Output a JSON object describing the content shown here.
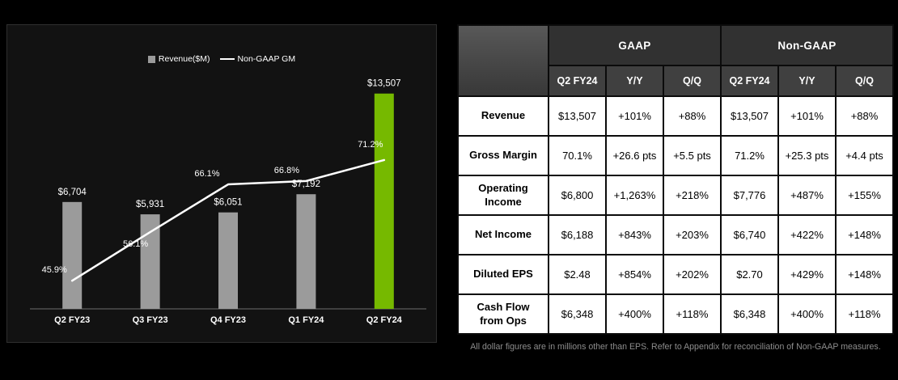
{
  "colors": {
    "nvidia_green": "#76b900",
    "bar_gray": "#9b9b9b",
    "gm_line_white": "#ffffff"
  },
  "chart_data": {
    "type": "bar",
    "subtype": "bar-with-line-overlay",
    "categories": [
      "Q2 FY23",
      "Q3 FY23",
      "Q4 FY23",
      "Q1 FY24",
      "Q2 FY24"
    ],
    "series": [
      {
        "name": "Revenue($M)",
        "type": "bar",
        "values": [
          6704,
          5931,
          6051,
          7192,
          13507
        ],
        "labels": [
          "$6,704",
          "$5,931",
          "$6,051",
          "$7,192",
          "$13,507"
        ],
        "bar_colors": [
          "#9b9b9b",
          "#9b9b9b",
          "#9b9b9b",
          "#9b9b9b",
          "#76b900"
        ]
      },
      {
        "name": "Non-GAAP GM",
        "type": "line",
        "values": [
          45.9,
          56.1,
          66.1,
          66.8,
          71.2
        ],
        "labels": [
          "45.9%",
          "56.1%",
          "66.1%",
          "66.8%",
          "71.2%"
        ],
        "color": "#ffffff"
      }
    ],
    "ylim_bar": [
      0,
      14000
    ],
    "ylim_line": [
      40,
      80
    ],
    "grid": false,
    "legend_position": "top-center"
  },
  "table": {
    "group_headers": [
      {
        "label": "GAAP",
        "span": 3
      },
      {
        "label": "Non-GAAP",
        "span": 3
      }
    ],
    "column_headers": [
      "Q2 FY24",
      "Y/Y",
      "Q/Q",
      "Q2 FY24",
      "Y/Y",
      "Q/Q"
    ],
    "rows": [
      {
        "label": "Revenue",
        "values": [
          "$13,507",
          "+101%",
          "+88%",
          "$13,507",
          "+101%",
          "+88%"
        ]
      },
      {
        "label": "Gross Margin",
        "values": [
          "70.1%",
          "+26.6 pts",
          "+5.5 pts",
          "71.2%",
          "+25.3 pts",
          "+4.4 pts"
        ]
      },
      {
        "label": "Operating Income",
        "values": [
          "$6,800",
          "+1,263%",
          "+218%",
          "$7,776",
          "+487%",
          "+155%"
        ]
      },
      {
        "label": "Net Income",
        "values": [
          "$6,188",
          "+843%",
          "+203%",
          "$6,740",
          "+422%",
          "+148%"
        ]
      },
      {
        "label": "Diluted EPS",
        "values": [
          "$2.48",
          "+854%",
          "+202%",
          "$2.70",
          "+429%",
          "+148%"
        ]
      },
      {
        "label": "Cash Flow from Ops",
        "values": [
          "$6,348",
          "+400%",
          "+118%",
          "$6,348",
          "+400%",
          "+118%"
        ]
      }
    ],
    "footnote": "All dollar figures are in millions other than EPS. Refer to Appendix for reconciliation of Non-GAAP measures."
  }
}
